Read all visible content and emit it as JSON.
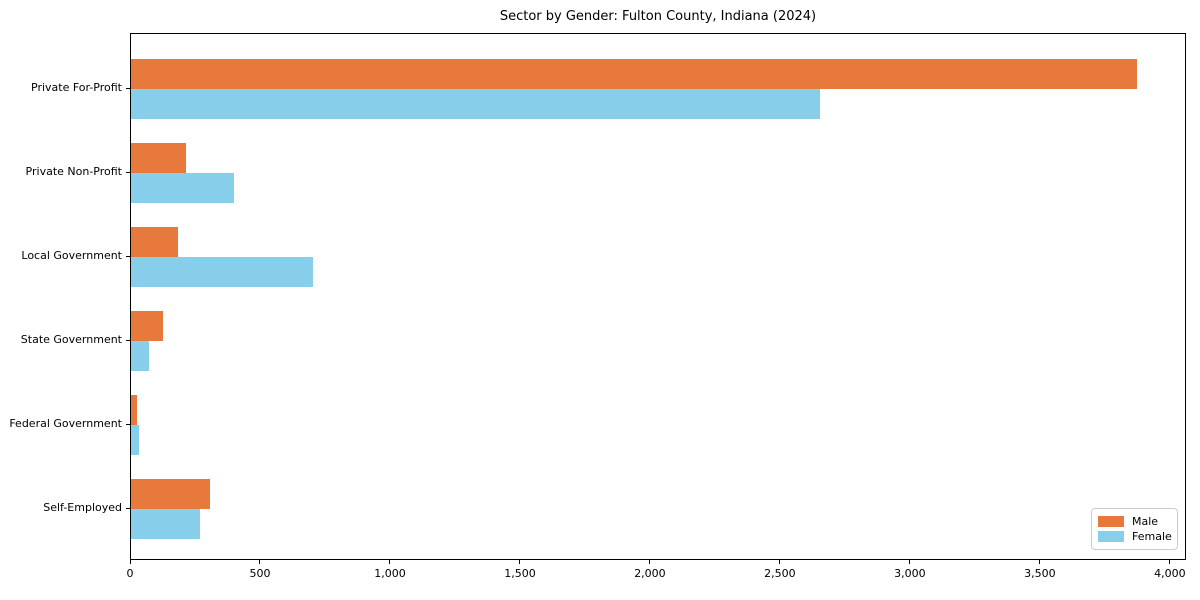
{
  "chart_data": {
    "type": "bar",
    "orientation": "horizontal",
    "title": "Sector by Gender: Fulton County, Indiana (2024)",
    "categories": [
      "Private For-Profit",
      "Private Non-Profit",
      "Local Government",
      "State Government",
      "Federal Government",
      "Self-Employed"
    ],
    "series": [
      {
        "name": "Male",
        "color": "#e8793d",
        "values": [
          3870,
          210,
          180,
          125,
          22,
          305
        ]
      },
      {
        "name": "Female",
        "color": "#87ceeb",
        "values": [
          2650,
          395,
          700,
          70,
          30,
          265
        ]
      }
    ],
    "xlabel": "",
    "ylabel": "",
    "xlim": [
      0,
      4062
    ],
    "xticks": [
      0,
      500,
      1000,
      1500,
      2000,
      2500,
      3000,
      3500,
      4000
    ],
    "xtick_labels": [
      "0",
      "500",
      "1,000",
      "1,500",
      "2,000",
      "2,500",
      "3,000",
      "3,500",
      "4,000"
    ],
    "grid": false,
    "legend": {
      "position": "lower right",
      "entries": [
        "Male",
        "Female"
      ]
    },
    "colors": {
      "male": "#e8793d",
      "female": "#87ceeb",
      "spine": "#000000",
      "legend_border": "#cccccc",
      "background": "#ffffff"
    }
  }
}
